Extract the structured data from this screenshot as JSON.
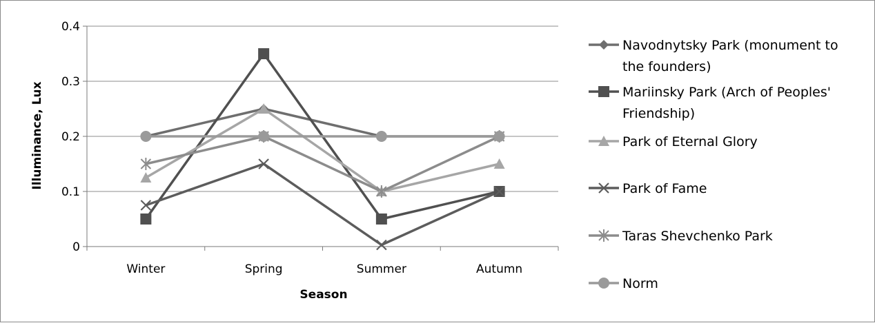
{
  "chart_data": {
    "type": "line",
    "xlabel": "Season",
    "ylabel": "Illuminance, Lux",
    "categories": [
      "Winter",
      "Spring",
      "Summer",
      "Autumn"
    ],
    "ylim": [
      0,
      0.4
    ],
    "yticks": [
      "0",
      "0.1",
      "0.2",
      "0.3",
      "0.4"
    ],
    "grid": "horizontal",
    "legend_position": "right",
    "series": [
      {
        "name": "Navodnytsky Park (monument to the founders)",
        "name_lines": [
          "Navodnytsky Park (monument to",
          "the founders)"
        ],
        "marker": "diamond",
        "color": "#6e6e6e",
        "values": [
          0.2,
          0.25,
          0.2,
          0.2
        ]
      },
      {
        "name": "Mariinsky Park (Arch of Peoples' Friendship)",
        "name_lines": [
          "Mariinsky Park (Arch of Peoples'",
          "Friendship)"
        ],
        "marker": "square",
        "color": "#505050",
        "values": [
          0.05,
          0.35,
          0.05,
          0.1
        ]
      },
      {
        "name": "Park of Eternal Glory",
        "name_lines": [
          "Park of Eternal Glory"
        ],
        "marker": "triangle",
        "color": "#a6a6a6",
        "values": [
          0.125,
          0.25,
          0.1,
          0.15
        ]
      },
      {
        "name": "Park of Fame",
        "name_lines": [
          "Park of Fame"
        ],
        "marker": "x",
        "color": "#5c5c5c",
        "values": [
          0.075,
          0.15,
          0.003,
          0.1
        ]
      },
      {
        "name": "Taras Shevchenko Park",
        "name_lines": [
          "Taras Shevchenko Park"
        ],
        "marker": "star",
        "color": "#8c8c8c",
        "values": [
          0.15,
          0.2,
          0.1,
          0.2
        ]
      },
      {
        "name": "Norm",
        "name_lines": [
          "Norm"
        ],
        "marker": "circle",
        "color": "#9a9a9a",
        "values": [
          0.2,
          0.2,
          0.2,
          0.2
        ]
      }
    ]
  }
}
